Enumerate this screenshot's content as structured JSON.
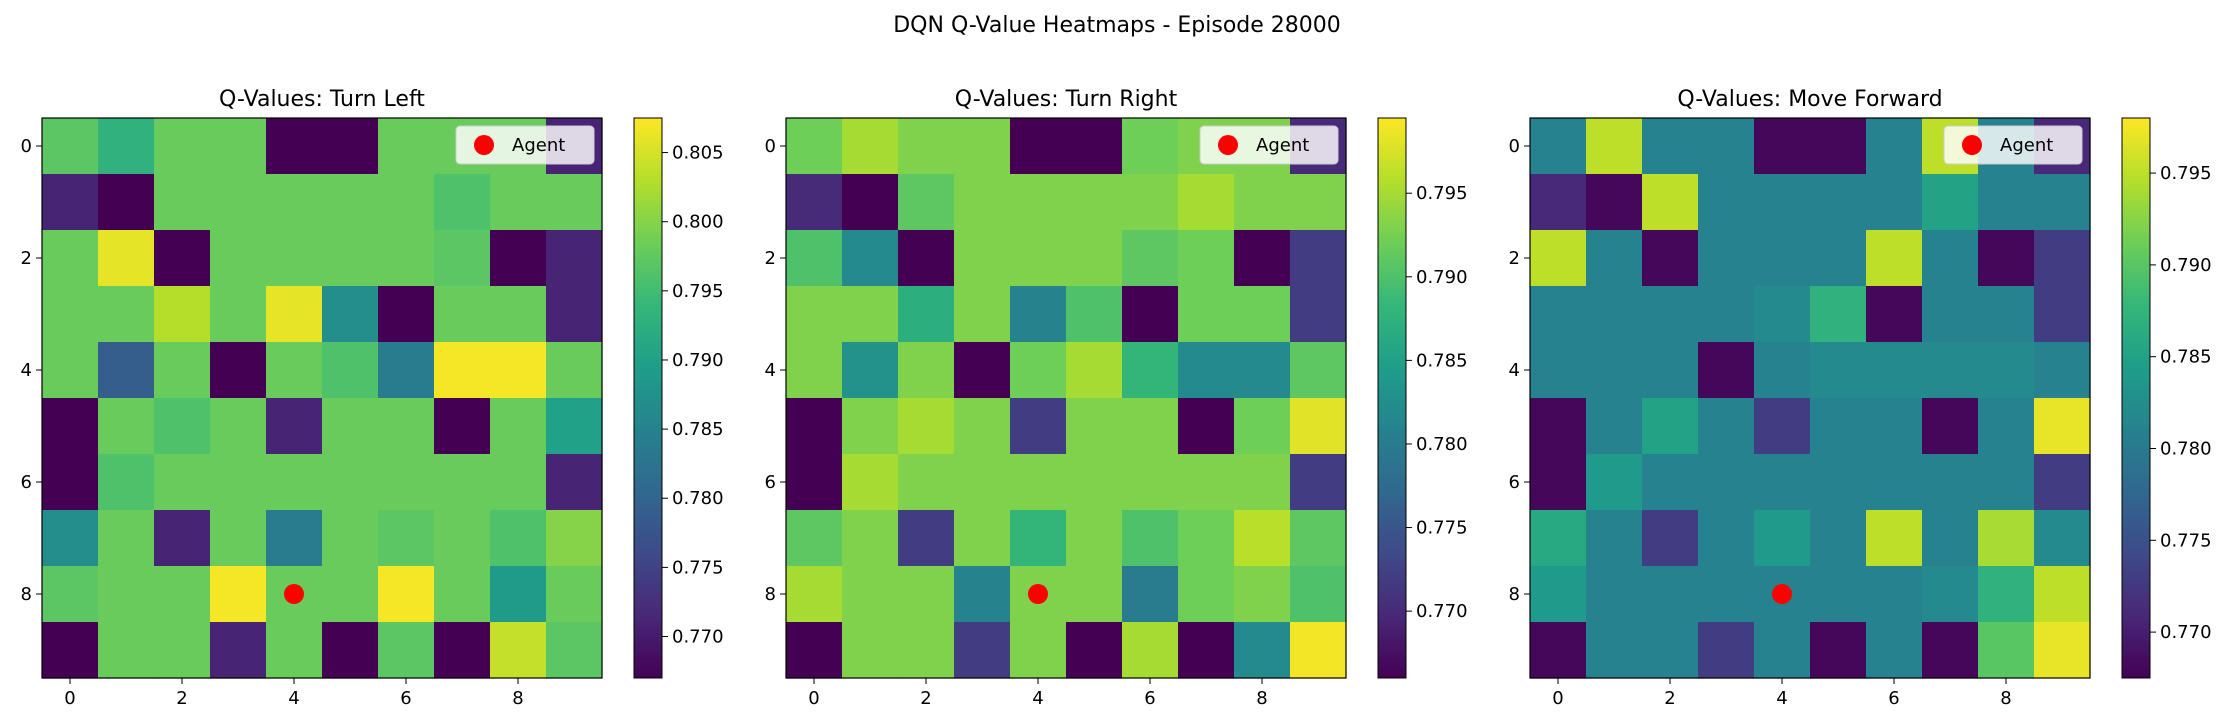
{
  "chart_data": {
    "type": "heatmap",
    "suptitle": "DQN Q-Value Heatmaps - Episode 28000",
    "agent": {
      "label": "Agent",
      "x": 4,
      "y": 8,
      "color": "#ff0000"
    },
    "x_ticks": [
      0,
      2,
      4,
      6,
      8
    ],
    "y_ticks": [
      0,
      2,
      4,
      6,
      8
    ],
    "colormap": "viridis",
    "panels": [
      {
        "title": "Q-Values: Turn Left",
        "vmin": 0.767,
        "vmax": 0.8075,
        "colorbar_ticks": [
          "0.770",
          "0.775",
          "0.780",
          "0.785",
          "0.790",
          "0.795",
          "0.800",
          "0.805"
        ],
        "colorbar_values": [
          0.77,
          0.775,
          0.78,
          0.785,
          0.79,
          0.795,
          0.8,
          0.805
        ],
        "grid": [
          [
            0.797,
            0.793,
            0.798,
            0.798,
            0.767,
            0.767,
            0.798,
            0.798,
            0.798,
            0.771
          ],
          [
            0.771,
            0.767,
            0.798,
            0.798,
            0.798,
            0.798,
            0.798,
            0.796,
            0.798,
            0.798
          ],
          [
            0.798,
            0.806,
            0.767,
            0.798,
            0.798,
            0.798,
            0.798,
            0.797,
            0.767,
            0.771
          ],
          [
            0.798,
            0.798,
            0.803,
            0.798,
            0.806,
            0.787,
            0.767,
            0.798,
            0.798,
            0.771
          ],
          [
            0.798,
            0.779,
            0.798,
            0.767,
            0.798,
            0.796,
            0.784,
            0.807,
            0.807,
            0.798
          ],
          [
            0.767,
            0.798,
            0.796,
            0.798,
            0.771,
            0.798,
            0.798,
            0.767,
            0.798,
            0.79
          ],
          [
            0.767,
            0.796,
            0.798,
            0.798,
            0.798,
            0.798,
            0.798,
            0.798,
            0.798,
            0.771
          ],
          [
            0.787,
            0.798,
            0.771,
            0.798,
            0.784,
            0.798,
            0.797,
            0.798,
            0.796,
            0.8
          ],
          [
            0.797,
            0.798,
            0.798,
            0.807,
            0.798,
            0.798,
            0.807,
            0.798,
            0.789,
            0.798
          ],
          [
            0.767,
            0.798,
            0.798,
            0.771,
            0.798,
            0.767,
            0.797,
            0.767,
            0.804,
            0.797
          ]
        ]
      },
      {
        "title": "Q-Values: Turn Right",
        "vmin": 0.766,
        "vmax": 0.7995,
        "colorbar_ticks": [
          "0.770",
          "0.775",
          "0.780",
          "0.785",
          "0.790",
          "0.795"
        ],
        "colorbar_values": [
          0.77,
          0.775,
          0.78,
          0.785,
          0.79,
          0.795
        ],
        "grid": [
          [
            0.792,
            0.795,
            0.793,
            0.793,
            0.766,
            0.766,
            0.792,
            0.793,
            0.793,
            0.77
          ],
          [
            0.77,
            0.766,
            0.791,
            0.793,
            0.793,
            0.793,
            0.793,
            0.795,
            0.793,
            0.793
          ],
          [
            0.79,
            0.782,
            0.766,
            0.793,
            0.793,
            0.793,
            0.791,
            0.792,
            0.766,
            0.772
          ],
          [
            0.793,
            0.793,
            0.787,
            0.793,
            0.781,
            0.79,
            0.766,
            0.792,
            0.792,
            0.772
          ],
          [
            0.793,
            0.783,
            0.793,
            0.766,
            0.792,
            0.795,
            0.788,
            0.782,
            0.782,
            0.791
          ],
          [
            0.766,
            0.793,
            0.795,
            0.793,
            0.772,
            0.793,
            0.793,
            0.766,
            0.792,
            0.798
          ],
          [
            0.766,
            0.795,
            0.793,
            0.793,
            0.793,
            0.793,
            0.793,
            0.793,
            0.793,
            0.772
          ],
          [
            0.791,
            0.793,
            0.772,
            0.793,
            0.788,
            0.793,
            0.79,
            0.792,
            0.796,
            0.791
          ],
          [
            0.795,
            0.793,
            0.793,
            0.781,
            0.793,
            0.793,
            0.78,
            0.792,
            0.793,
            0.79
          ],
          [
            0.766,
            0.793,
            0.793,
            0.772,
            0.793,
            0.766,
            0.795,
            0.766,
            0.782,
            0.799
          ]
        ]
      },
      {
        "title": "Q-Values: Move Forward",
        "vmin": 0.7675,
        "vmax": 0.798,
        "colorbar_ticks": [
          "0.770",
          "0.775",
          "0.780",
          "0.785",
          "0.790",
          "0.795"
        ],
        "colorbar_values": [
          0.77,
          0.775,
          0.78,
          0.785,
          0.79,
          0.795
        ],
        "grid": [
          [
            0.781,
            0.795,
            0.781,
            0.781,
            0.768,
            0.768,
            0.781,
            0.795,
            0.781,
            0.771
          ],
          [
            0.771,
            0.768,
            0.795,
            0.781,
            0.781,
            0.781,
            0.781,
            0.785,
            0.781,
            0.781
          ],
          [
            0.795,
            0.781,
            0.768,
            0.781,
            0.781,
            0.781,
            0.795,
            0.781,
            0.768,
            0.773
          ],
          [
            0.781,
            0.781,
            0.781,
            0.781,
            0.782,
            0.787,
            0.768,
            0.781,
            0.781,
            0.773
          ],
          [
            0.781,
            0.781,
            0.781,
            0.768,
            0.781,
            0.782,
            0.782,
            0.782,
            0.782,
            0.781
          ],
          [
            0.768,
            0.781,
            0.785,
            0.781,
            0.773,
            0.781,
            0.781,
            0.768,
            0.781,
            0.797
          ],
          [
            0.768,
            0.784,
            0.781,
            0.781,
            0.781,
            0.781,
            0.781,
            0.781,
            0.781,
            0.773
          ],
          [
            0.786,
            0.781,
            0.773,
            0.781,
            0.784,
            0.781,
            0.795,
            0.781,
            0.794,
            0.782
          ],
          [
            0.784,
            0.781,
            0.781,
            0.781,
            0.781,
            0.781,
            0.781,
            0.782,
            0.787,
            0.795
          ],
          [
            0.768,
            0.781,
            0.781,
            0.773,
            0.781,
            0.768,
            0.781,
            0.768,
            0.79,
            0.797
          ]
        ]
      }
    ]
  }
}
